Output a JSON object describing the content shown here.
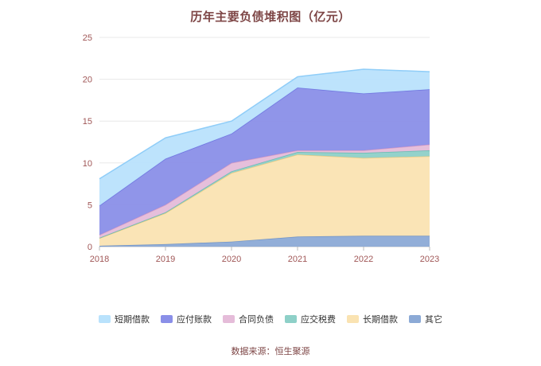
{
  "title": "历年主要负债堆积图（亿元）",
  "source": "数据来源：恒生聚源",
  "chart_data": {
    "type": "area",
    "stacked": true,
    "title": "历年主要负债堆积图（亿元）",
    "x": [
      "2018",
      "2019",
      "2020",
      "2021",
      "2022",
      "2023"
    ],
    "xlabel": "",
    "ylabel": "",
    "ylim": [
      0,
      25
    ],
    "yticks": [
      0,
      5,
      10,
      15,
      20,
      25
    ],
    "grid": true,
    "legend_position": "bottom",
    "series": [
      {
        "name": "短期借款",
        "fill": "#b9e2fc",
        "line": "#8fcdf8",
        "values": [
          3.2,
          2.5,
          1.5,
          1.3,
          2.9,
          2.1
        ]
      },
      {
        "name": "应付账款",
        "fill": "#8a8fe8",
        "line": "#6f74e0",
        "values": [
          3.5,
          5.5,
          3.5,
          7.5,
          6.8,
          6.6
        ]
      },
      {
        "name": "合同负债",
        "fill": "#e5bcd9",
        "line": "#d79cc4",
        "values": [
          0.35,
          0.9,
          1.0,
          0.2,
          0.3,
          0.7
        ]
      },
      {
        "name": "应交税费",
        "fill": "#8ed0c8",
        "line": "#67bdb2",
        "values": [
          0.05,
          0.1,
          0.2,
          0.3,
          0.6,
          0.7
        ]
      },
      {
        "name": "长期借款",
        "fill": "#fae3b2",
        "line": "#f1cd85",
        "values": [
          0.9,
          3.7,
          8.2,
          9.8,
          9.3,
          9.5
        ]
      },
      {
        "name": "其它",
        "fill": "#8caad6",
        "line": "#6f93c9",
        "values": [
          0.1,
          0.3,
          0.6,
          1.2,
          1.3,
          1.3
        ]
      }
    ],
    "stack_order_bottom_to_top": [
      "其它",
      "长期借款",
      "应交税费",
      "合同负债",
      "应付账款",
      "短期借款"
    ],
    "axis_label_color": "#a05757",
    "totals_by_year": [
      8.1,
      13.0,
      15.0,
      20.3,
      21.2,
      20.9
    ]
  }
}
